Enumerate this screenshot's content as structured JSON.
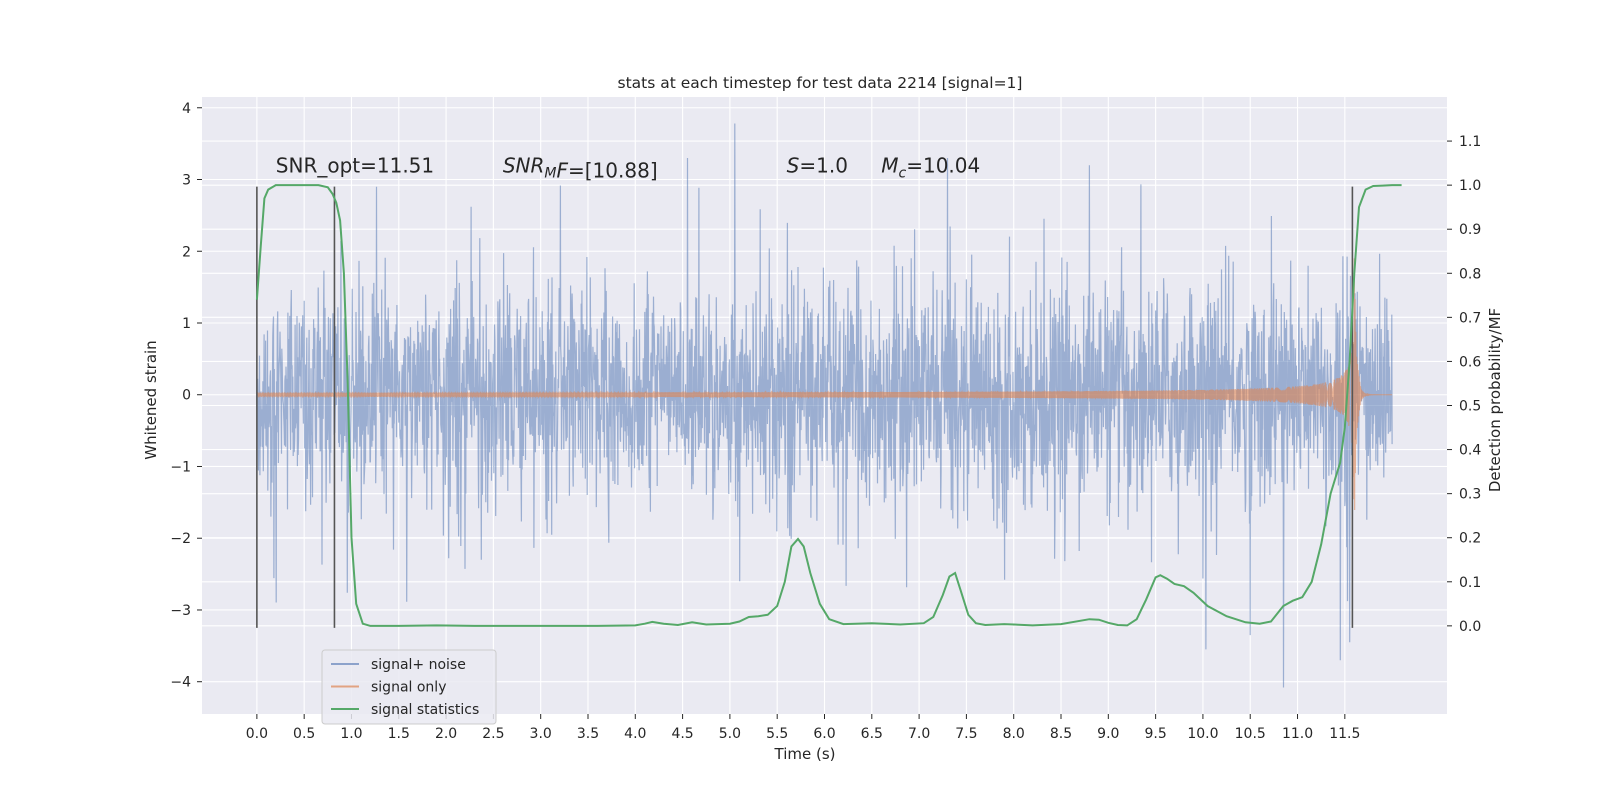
{
  "chart_data": {
    "type": "line",
    "title": "stats at each timestep for test data 2214 [signal=1]",
    "xlabel": "Time (s)",
    "ylabel_left": "Whitened strain",
    "ylabel_right": "Detection probability/MF",
    "xlim": [
      -0.58,
      12.58
    ],
    "ylim_left": [
      -4.45,
      4.15
    ],
    "ylim_right": [
      -0.2,
      1.2
    ],
    "x_ticks": [
      0.0,
      0.5,
      1.0,
      1.5,
      2.0,
      2.5,
      3.0,
      3.5,
      4.0,
      4.5,
      5.0,
      5.5,
      6.0,
      6.5,
      7.0,
      7.5,
      8.0,
      8.5,
      9.0,
      9.5,
      10.0,
      10.5,
      11.0,
      11.5
    ],
    "x_tick_labels": [
      "0.0",
      "0.5",
      "1.0",
      "1.5",
      "2.0",
      "2.5",
      "3.0",
      "3.5",
      "4.0",
      "4.5",
      "5.0",
      "5.5",
      "6.0",
      "6.5",
      "7.0",
      "7.5",
      "8.0",
      "8.5",
      "9.0",
      "9.5",
      "10.0",
      "10.5",
      "11.0",
      "11.5"
    ],
    "y_left_ticks": [
      -4,
      -3,
      -2,
      -1,
      0,
      1,
      2,
      3,
      4
    ],
    "y_left_tick_labels": [
      "−4",
      "−3",
      "−2",
      "−1",
      "0",
      "1",
      "2",
      "3",
      "4"
    ],
    "y_right_ticks": [
      0.0,
      0.1,
      0.2,
      0.3,
      0.4,
      0.5,
      0.6,
      0.7,
      0.8,
      0.9,
      1.0,
      1.1
    ],
    "y_right_tick_labels": [
      "0.0",
      "0.1",
      "0.2",
      "0.3",
      "0.4",
      "0.5",
      "0.6",
      "0.7",
      "0.8",
      "0.9",
      "1.0",
      "1.1"
    ],
    "grid": true,
    "legend_position": "bottom-left",
    "colors": {
      "signal_noise": "#4c72b0",
      "signal_only": "#dd8452",
      "statistics": "#55a868",
      "vlines": "#555555",
      "background": "#eaeaf2",
      "grid": "#ffffff"
    },
    "annotations": [
      {
        "text": "SNR_opt=11.51",
        "x": 0.2,
        "y": 3.1
      },
      {
        "text": "SNR_MF=[10.88]",
        "x": 2.6,
        "y": 3.1
      },
      {
        "text": "S=1.0",
        "x": 5.6,
        "y": 3.1
      },
      {
        "text": "M_c=10.04",
        "x": 6.6,
        "y": 3.1
      }
    ],
    "vertical_lines": [
      {
        "x": 0.0,
        "y_range": [
          -3.25,
          2.9
        ]
      },
      {
        "x": 0.82,
        "y_range": [
          -3.25,
          2.9
        ]
      },
      {
        "x": 11.58,
        "y_range": [
          -3.25,
          2.9
        ]
      }
    ],
    "series": [
      {
        "name": "signal+ noise",
        "axis": "left",
        "kind": "noise",
        "x_range": [
          0.0,
          12.0
        ],
        "samples": 3000,
        "envelope": 1.55,
        "peaks": [
          {
            "x": 5.05,
            "y": 3.78
          },
          {
            "x": 4.55,
            "y": 3.3
          },
          {
            "x": 7.3,
            "y": 3.3
          },
          {
            "x": 10.85,
            "y": -4.08
          },
          {
            "x": 11.55,
            "y": -3.45
          },
          {
            "x": 10.03,
            "y": -3.55
          },
          {
            "x": 10.5,
            "y": -3.35
          },
          {
            "x": 8.8,
            "y": 3.2
          },
          {
            "x": 11.45,
            "y": -3.7
          }
        ]
      },
      {
        "name": "signal only",
        "axis": "left",
        "kind": "chirp",
        "x_range": [
          0.0,
          12.0
        ],
        "merger_time": 11.6,
        "peak_amplitude": 1.9
      },
      {
        "name": "signal statistics",
        "axis": "right",
        "kind": "line",
        "x": [
          0.0,
          0.04,
          0.08,
          0.12,
          0.2,
          0.3,
          0.5,
          0.65,
          0.75,
          0.8,
          0.84,
          0.88,
          0.92,
          0.96,
          1.0,
          1.05,
          1.12,
          1.2,
          1.5,
          1.9,
          2.3,
          3.0,
          3.6,
          4.0,
          4.1,
          4.18,
          4.3,
          4.45,
          4.6,
          4.75,
          5.0,
          5.1,
          5.2,
          5.3,
          5.4,
          5.5,
          5.58,
          5.65,
          5.72,
          5.78,
          5.85,
          5.95,
          6.05,
          6.2,
          6.5,
          6.8,
          7.05,
          7.15,
          7.25,
          7.32,
          7.38,
          7.44,
          7.52,
          7.6,
          7.7,
          7.9,
          8.2,
          8.5,
          8.8,
          8.9,
          9.0,
          9.1,
          9.2,
          9.3,
          9.4,
          9.5,
          9.55,
          9.62,
          9.7,
          9.8,
          9.9,
          10.05,
          10.25,
          10.45,
          10.6,
          10.72,
          10.85,
          10.95,
          11.05,
          11.15,
          11.25,
          11.35,
          11.45,
          11.5,
          11.55,
          11.6,
          11.65,
          11.72,
          11.8,
          11.9,
          12.0,
          12.1
        ],
        "y": [
          0.74,
          0.86,
          0.97,
          0.99,
          1.0,
          1.0,
          1.0,
          1.0,
          0.995,
          0.98,
          0.96,
          0.92,
          0.8,
          0.55,
          0.2,
          0.05,
          0.005,
          0.0,
          0.0,
          0.001,
          0.0,
          0.0,
          0.0,
          0.001,
          0.005,
          0.009,
          0.005,
          0.002,
          0.008,
          0.003,
          0.005,
          0.01,
          0.02,
          0.022,
          0.025,
          0.045,
          0.1,
          0.18,
          0.197,
          0.18,
          0.12,
          0.05,
          0.015,
          0.004,
          0.006,
          0.003,
          0.006,
          0.02,
          0.07,
          0.112,
          0.12,
          0.08,
          0.025,
          0.006,
          0.002,
          0.004,
          0.001,
          0.004,
          0.015,
          0.014,
          0.007,
          0.002,
          0.001,
          0.015,
          0.06,
          0.11,
          0.115,
          0.107,
          0.095,
          0.09,
          0.075,
          0.045,
          0.022,
          0.008,
          0.005,
          0.01,
          0.045,
          0.057,
          0.065,
          0.1,
          0.185,
          0.3,
          0.37,
          0.45,
          0.6,
          0.8,
          0.95,
          0.99,
          0.998,
          0.999,
          1.0,
          1.0
        ]
      }
    ]
  }
}
